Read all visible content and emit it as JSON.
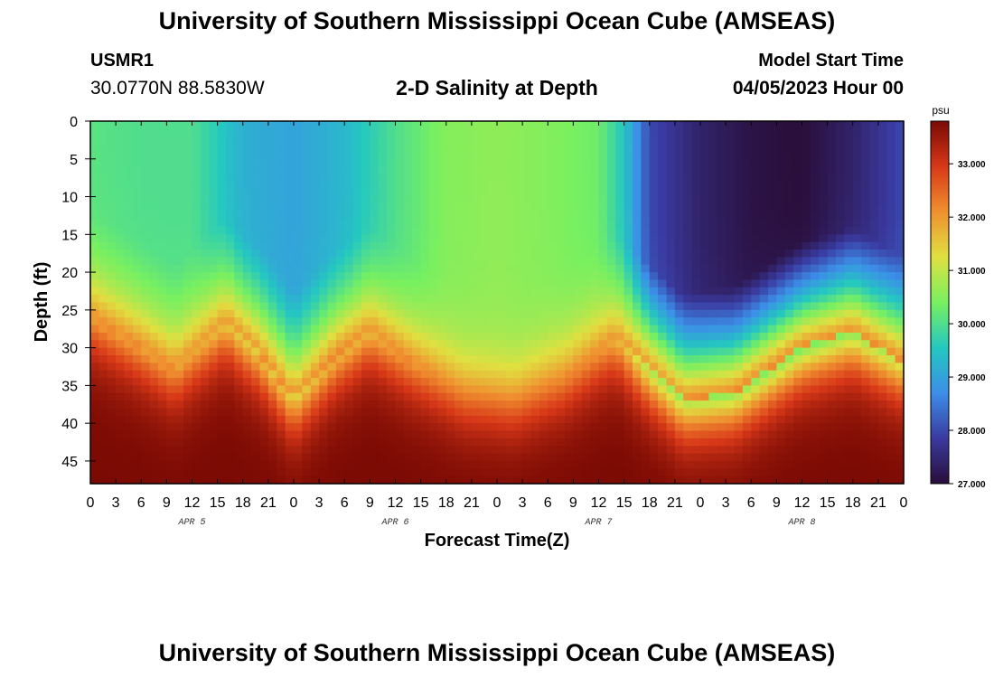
{
  "header": {
    "title": "University of Southern Mississippi Ocean Cube (AMSEAS)",
    "station_id": "USMR1",
    "station_coords": "30.0770N  88.5830W",
    "subtitle": "2-D Salinity at Depth",
    "model_start_label": "Model Start Time",
    "model_start_value": "04/05/2023 Hour 00"
  },
  "footer": {
    "title_repeat": "University of Southern Mississippi Ocean Cube (AMSEAS)"
  },
  "chart_data": {
    "type": "heatmap",
    "title": "2-D Salinity at Depth",
    "xlabel": "Forecast Time(Z)",
    "ylabel": "Depth (ft)",
    "x_tick_labels": [
      "0",
      "3",
      "6",
      "9",
      "12",
      "15",
      "18",
      "21",
      "0",
      "3",
      "6",
      "9",
      "12",
      "15",
      "18",
      "21",
      "0",
      "3",
      "6",
      "9",
      "12",
      "15",
      "18",
      "21",
      "0",
      "3",
      "6",
      "9",
      "12",
      "15",
      "18",
      "21",
      "0"
    ],
    "x_hours": [
      0,
      96
    ],
    "date_labels": [
      {
        "label": "APR 5",
        "hour": 12
      },
      {
        "label": "APR 6",
        "hour": 36
      },
      {
        "label": "APR 7",
        "hour": 60
      },
      {
        "label": "APR 8",
        "hour": 84
      }
    ],
    "y_ticks": [
      0,
      5,
      10,
      15,
      20,
      25,
      30,
      35,
      40,
      45
    ],
    "ylim": [
      0,
      48
    ],
    "y_inverted": true,
    "colorbar": {
      "unit": "psu",
      "range": [
        27.0,
        33.8
      ],
      "tick_values": [
        27.0,
        28.0,
        29.0,
        30.0,
        31.0,
        32.0,
        33.0
      ],
      "tick_labels": [
        "27.000",
        "28.000",
        "29.000",
        "30.000",
        "31.000",
        "32.000",
        "33.000"
      ],
      "colors": [
        "#2a0e3a",
        "#3a3aa0",
        "#3c8ee8",
        "#24c8c0",
        "#78f060",
        "#e0e040",
        "#f09030",
        "#d83818",
        "#7a0a04"
      ]
    },
    "surface_salinity_by_hour": [
      [
        0,
        30.1
      ],
      [
        6,
        30.0
      ],
      [
        12,
        30.0
      ],
      [
        18,
        29.2
      ],
      [
        24,
        29.0
      ],
      [
        30,
        29.3
      ],
      [
        36,
        30.0
      ],
      [
        42,
        30.5
      ],
      [
        48,
        30.6
      ],
      [
        54,
        30.5
      ],
      [
        60,
        30.3
      ],
      [
        63,
        29.5
      ],
      [
        66,
        28.0
      ],
      [
        72,
        27.4
      ],
      [
        78,
        27.1
      ],
      [
        84,
        27.0
      ],
      [
        90,
        27.4
      ],
      [
        96,
        28.0
      ]
    ],
    "halocline_depth_ft_by_hour": [
      [
        0,
        26
      ],
      [
        6,
        30
      ],
      [
        10,
        33
      ],
      [
        16,
        27
      ],
      [
        20,
        31
      ],
      [
        24,
        37
      ],
      [
        29,
        31
      ],
      [
        33,
        28
      ],
      [
        38,
        32
      ],
      [
        44,
        36
      ],
      [
        50,
        37
      ],
      [
        56,
        34
      ],
      [
        62,
        29
      ],
      [
        66,
        33
      ],
      [
        70,
        37
      ],
      [
        76,
        36
      ],
      [
        84,
        30
      ],
      [
        90,
        28
      ],
      [
        96,
        32
      ]
    ],
    "bottom_salinity": 33.8
  }
}
